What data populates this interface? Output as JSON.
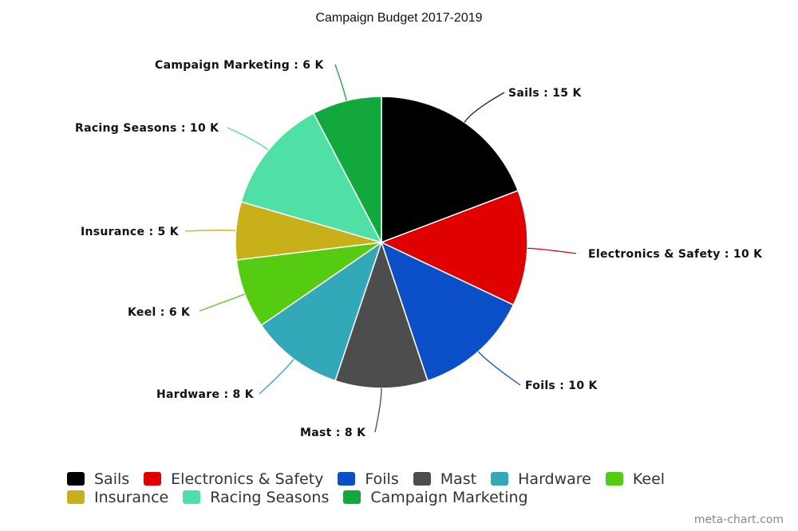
{
  "chart_data": {
    "type": "pie",
    "title": "Campaign Budget 2017-2019",
    "value_suffix": " K",
    "slices": [
      {
        "name": "Sails",
        "value": 15,
        "color": "#000000"
      },
      {
        "name": "Electronics & Safety",
        "value": 10,
        "color": "#e00000"
      },
      {
        "name": "Foils",
        "value": 10,
        "color": "#0a4fc8"
      },
      {
        "name": "Mast",
        "value": 8,
        "color": "#4d4d4d"
      },
      {
        "name": "Hardware",
        "value": 8,
        "color": "#33a8b8"
      },
      {
        "name": "Keel",
        "value": 6,
        "color": "#55cc11"
      },
      {
        "name": "Insurance",
        "value": 5,
        "color": "#c8b01a"
      },
      {
        "name": "Racing Seasons",
        "value": 10,
        "color": "#4fe0a6"
      },
      {
        "name": "Campaign Marketing",
        "value": 6,
        "color": "#13a83b"
      }
    ],
    "legend_position": "bottom"
  },
  "watermark": "meta-chart.com"
}
